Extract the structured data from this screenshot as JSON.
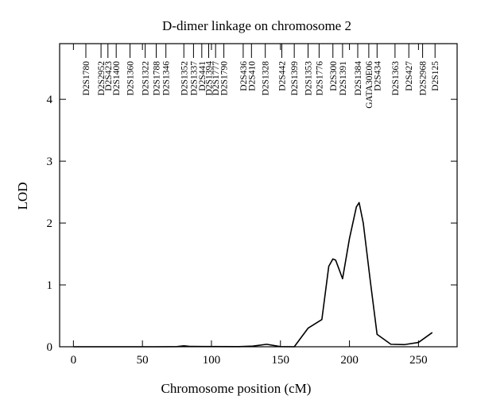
{
  "chart_data": {
    "type": "line",
    "title": "D-dimer linkage on chromosome 2",
    "xlabel": "Chromosome position (cM)",
    "ylabel": "LOD",
    "xlim": [
      -10,
      278
    ],
    "ylim": [
      0,
      4.9
    ],
    "xticks": [
      0,
      50,
      100,
      150,
      200,
      250
    ],
    "yticks": [
      0,
      1,
      2,
      3,
      4
    ],
    "grid": false,
    "legend": "none",
    "line_color": "#000000",
    "markers": [
      {
        "name": "D2S1780",
        "pos": 9
      },
      {
        "name": "D2S2952",
        "pos": 20
      },
      {
        "name": "D2S423",
        "pos": 25
      },
      {
        "name": "D2S1400",
        "pos": 31
      },
      {
        "name": "D2S1360",
        "pos": 41
      },
      {
        "name": "D2S1322",
        "pos": 52
      },
      {
        "name": "D2S1788",
        "pos": 60
      },
      {
        "name": "D2S1346",
        "pos": 67
      },
      {
        "name": "D2S1352",
        "pos": 80
      },
      {
        "name": "D2S1337",
        "pos": 87
      },
      {
        "name": "D2S441",
        "pos": 93
      },
      {
        "name": "D2S1394",
        "pos": 98
      },
      {
        "name": "D2S1777",
        "pos": 103
      },
      {
        "name": "D2S1790",
        "pos": 109
      },
      {
        "name": "D2S436",
        "pos": 123
      },
      {
        "name": "D2S410",
        "pos": 129
      },
      {
        "name": "D2S1328",
        "pos": 139
      },
      {
        "name": "D2S442",
        "pos": 151
      },
      {
        "name": "D2S1399",
        "pos": 160
      },
      {
        "name": "D2S1353",
        "pos": 170
      },
      {
        "name": "D2S1776",
        "pos": 178
      },
      {
        "name": "D2S300",
        "pos": 188
      },
      {
        "name": "D2S1391",
        "pos": 195
      },
      {
        "name": "D2S1384",
        "pos": 206
      },
      {
        "name": "GATA30E06",
        "pos": 214
      },
      {
        "name": "D2S434",
        "pos": 220
      },
      {
        "name": "D2S1363",
        "pos": 233
      },
      {
        "name": "D2S427",
        "pos": 243
      },
      {
        "name": "D2S2968",
        "pos": 253
      },
      {
        "name": "D2S125",
        "pos": 262
      }
    ],
    "series": [
      {
        "x": [
          0,
          20,
          60,
          75,
          80,
          85,
          120,
          130,
          140,
          150,
          160,
          170,
          180,
          185,
          188,
          190,
          192,
          195,
          200,
          205,
          207,
          210,
          215,
          220,
          230,
          240,
          250,
          255,
          260
        ],
        "y": [
          0,
          0,
          0,
          0.003,
          0.015,
          0.005,
          0.003,
          0.01,
          0.04,
          0.002,
          0.0,
          0.3,
          0.44,
          1.3,
          1.42,
          1.4,
          1.28,
          1.1,
          1.75,
          2.26,
          2.33,
          2.0,
          1.08,
          0.2,
          0.04,
          0.035,
          0.07,
          0.15,
          0.23
        ]
      }
    ]
  }
}
